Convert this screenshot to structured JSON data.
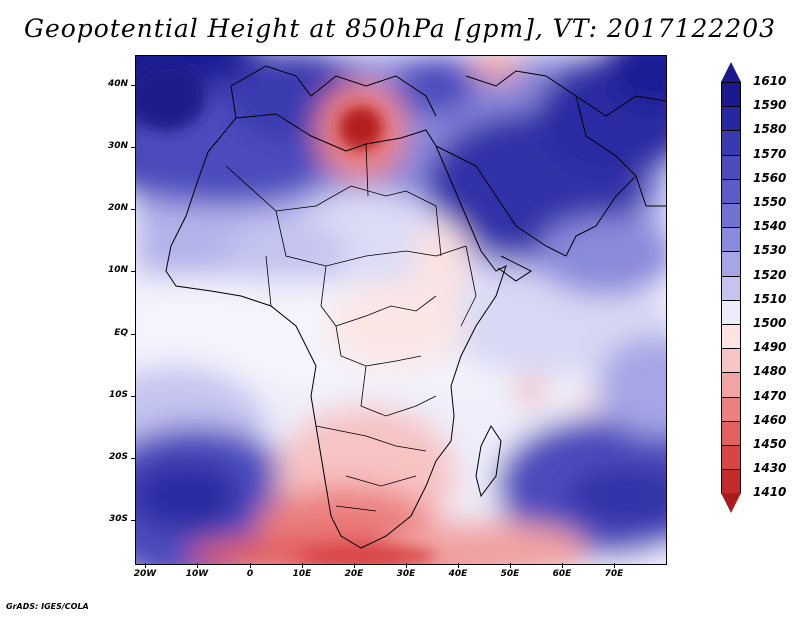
{
  "title": "Geopotential Height at 850hPa [gpm], VT: 2017122203",
  "credit": "GrADS: IGES/COLA",
  "lat_labels": [
    "40N",
    "30N",
    "20N",
    "10N",
    "EQ",
    "10S",
    "20S",
    "30S"
  ],
  "lon_labels": [
    "20W",
    "10W",
    "0",
    "10E",
    "20E",
    "30E",
    "40E",
    "50E",
    "60E",
    "70E"
  ],
  "colorbar": {
    "labels": [
      "1610",
      "1590",
      "1580",
      "1570",
      "1560",
      "1550",
      "1540",
      "1530",
      "1520",
      "1510",
      "1500",
      "1490",
      "1480",
      "1470",
      "1460",
      "1450",
      "1430",
      "1410"
    ],
    "colors": [
      "#1a1a8c",
      "#2727a0",
      "#3a3ab0",
      "#4b4bbd",
      "#5c5cc8",
      "#7272d2",
      "#8a8adc",
      "#a6a6e6",
      "#c4c4f0",
      "#ececfa",
      "#fde3e3",
      "#f7c3c3",
      "#f2a3a3",
      "#ec8080",
      "#e36060",
      "#d84545",
      "#c42a2a",
      "#a81c1c"
    ]
  },
  "colors": {
    "land_outline": "#000000",
    "background": "#ffffff"
  }
}
